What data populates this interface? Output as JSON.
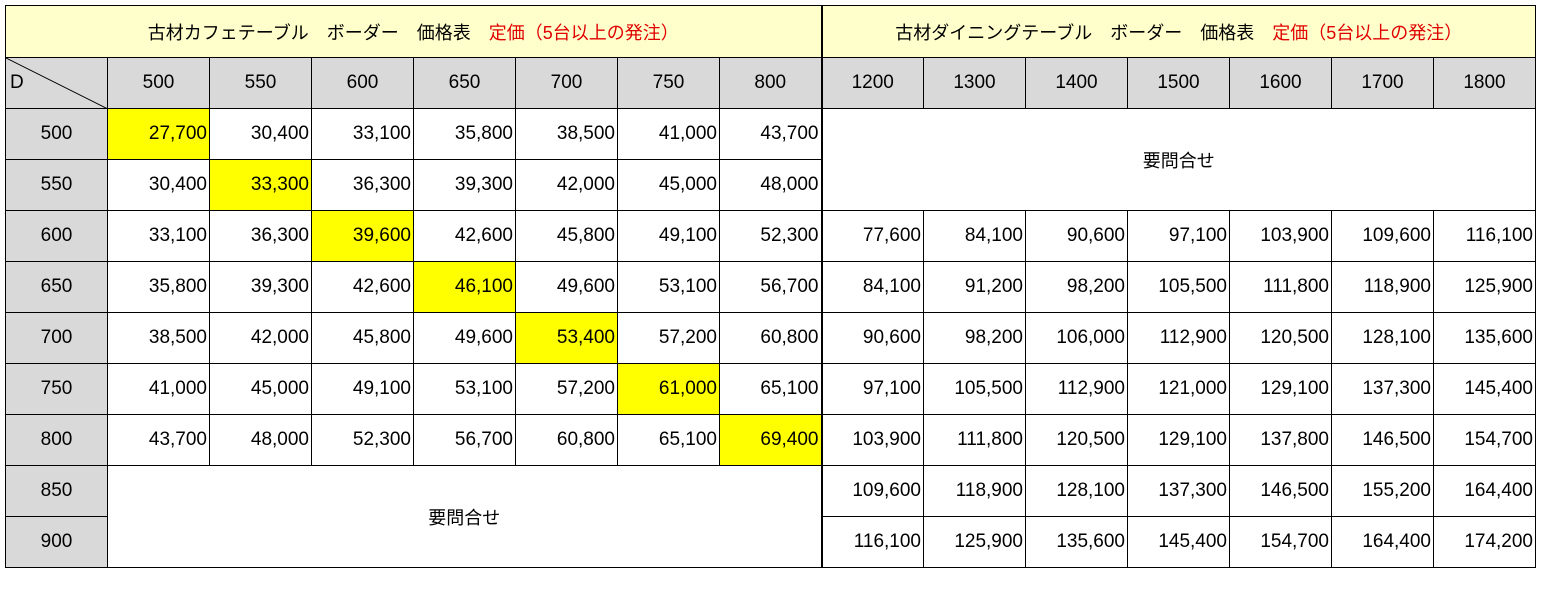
{
  "cafe": {
    "title": "古材カフェテーブル　ボーダー　価格表",
    "note": "定価（5台以上の発注）"
  },
  "dining": {
    "title": "古材ダイニングテーブル　ボーダー　価格表",
    "note": "定価（5台以上の発注）"
  },
  "corner_label": "D",
  "width_headers": [
    "500",
    "550",
    "600",
    "650",
    "700",
    "750",
    "800",
    "1200",
    "1300",
    "1400",
    "1500",
    "1600",
    "1700",
    "1800"
  ],
  "depth_rows": [
    "500",
    "550",
    "600",
    "650",
    "700",
    "750",
    "800",
    "850",
    "900"
  ],
  "inquiry_label": "要問合せ",
  "cells": [
    [
      "27,700",
      "30,400",
      "33,100",
      "35,800",
      "38,500",
      "41,000",
      "43,700"
    ],
    [
      "30,400",
      "33,300",
      "36,300",
      "39,300",
      "42,000",
      "45,000",
      "48,000"
    ],
    [
      "33,100",
      "36,300",
      "39,600",
      "42,600",
      "45,800",
      "49,100",
      "52,300",
      "77,600",
      "84,100",
      "90,600",
      "97,100",
      "103,900",
      "109,600",
      "116,100"
    ],
    [
      "35,800",
      "39,300",
      "42,600",
      "46,100",
      "49,600",
      "53,100",
      "56,700",
      "84,100",
      "91,200",
      "98,200",
      "105,500",
      "111,800",
      "118,900",
      "125,900"
    ],
    [
      "38,500",
      "42,000",
      "45,800",
      "49,600",
      "53,400",
      "57,200",
      "60,800",
      "90,600",
      "98,200",
      "106,000",
      "112,900",
      "120,500",
      "128,100",
      "135,600"
    ],
    [
      "41,000",
      "45,000",
      "49,100",
      "53,100",
      "57,200",
      "61,000",
      "65,100",
      "97,100",
      "105,500",
      "112,900",
      "121,000",
      "129,100",
      "137,300",
      "145,400"
    ],
    [
      "43,700",
      "48,000",
      "52,300",
      "56,700",
      "60,800",
      "65,100",
      "69,400",
      "103,900",
      "111,800",
      "120,500",
      "129,100",
      "137,800",
      "146,500",
      "154,700"
    ],
    [
      "",
      "",
      "",
      "",
      "",
      "",
      "",
      "109,600",
      "118,900",
      "128,100",
      "137,300",
      "146,500",
      "155,200",
      "164,400"
    ],
    [
      "",
      "",
      "",
      "",
      "",
      "",
      "",
      "116,100",
      "125,900",
      "135,600",
      "145,400",
      "154,700",
      "164,400",
      "174,200"
    ]
  ],
  "colors": {
    "title_bg": "#ffffcc",
    "header_bg": "#d9d9d9",
    "highlight": "#ffff00",
    "note_red": "#e00000"
  }
}
